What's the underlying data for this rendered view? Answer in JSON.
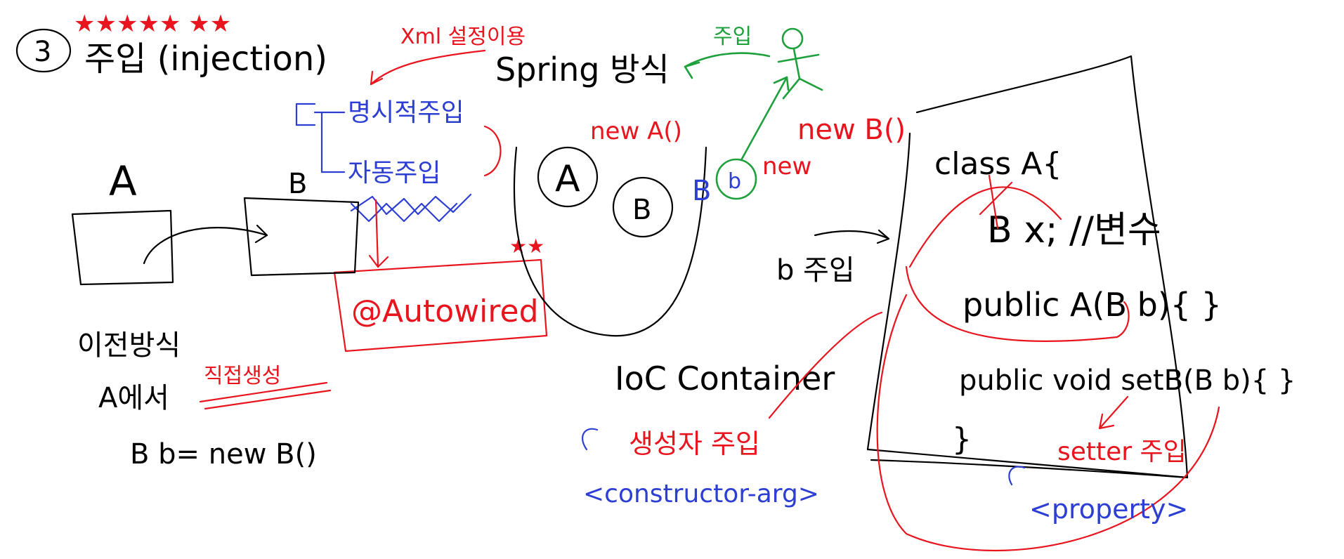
{
  "colors": {
    "ink": "#000000",
    "red": "#e8141e",
    "blue": "#2d3fd3",
    "green": "#1ea03c"
  },
  "heading": {
    "number": "3",
    "title": "주입 (injection)"
  },
  "notes": {
    "xml_config": "Xml 설정이용",
    "spring_way": "Spring 방식",
    "inject_green": "주입",
    "new_a": "new A()",
    "new_b_top": "new B()",
    "new_b_side": "new"
  },
  "injection_types": {
    "explicit": "명시적주입",
    "auto": "자동주입",
    "autowired": "@Autowired"
  },
  "left_example": {
    "class_a": "A",
    "class_b": "B",
    "old_way": "이전방식",
    "in_a": "A에서",
    "direct_create": "직접생성",
    "code": "B b= new B()"
  },
  "container": {
    "bean_a": "A",
    "bean_b": "B",
    "bean_b_label": "B",
    "bean_b_small": "b",
    "label": "IoC Container"
  },
  "class_box": {
    "line1": "class A{",
    "line2": "B x; //변수",
    "line3": "public A(B b){ }",
    "line4": "public void setB(B b){ }",
    "line5": "}",
    "b_inject": "b 주입"
  },
  "bottom_notes": {
    "ctor_inject": "생성자 주입",
    "ctor_tag": "<constructor-arg>",
    "setter_inject": "setter 주입",
    "property_tag": "<property>"
  }
}
